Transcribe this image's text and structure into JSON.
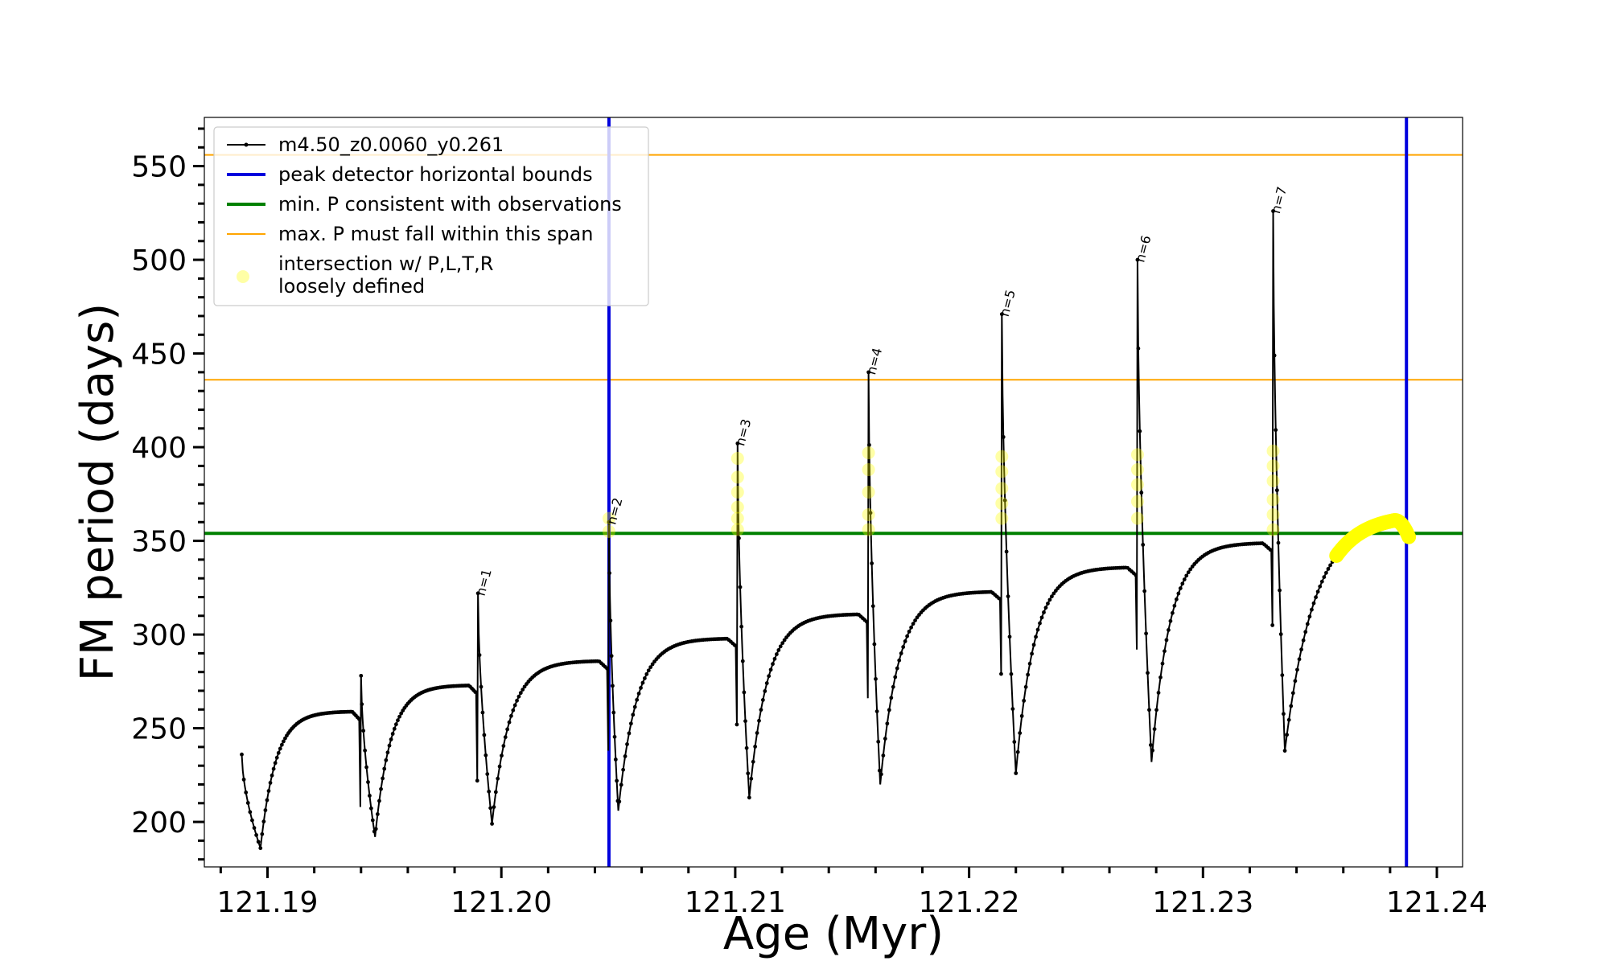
{
  "chart_data": {
    "type": "line",
    "title": "",
    "xlabel": "Age (Myr)",
    "ylabel": "FM period (days)",
    "xlim": [
      121.1873,
      121.2411
    ],
    "ylim": [
      176.0,
      576.0
    ],
    "x_ticks": [
      121.19,
      121.2,
      121.21,
      121.22,
      121.23,
      121.24
    ],
    "x_tick_labels": [
      "121.19",
      "121.20",
      "121.21",
      "121.22",
      "121.23",
      "121.24"
    ],
    "y_ticks": [
      200,
      250,
      300,
      350,
      400,
      450,
      500,
      550
    ],
    "y_tick_labels": [
      "200",
      "250",
      "300",
      "350",
      "400",
      "450",
      "500",
      "550"
    ],
    "legend_position": "top-left",
    "series": [
      {
        "name": "m4.50_z0.0060_y0.261",
        "kind": "line-with-markers",
        "color": "#000000",
        "cycles": [
          {
            "start": 121.1889,
            "start_p": 236,
            "min_x": 121.1897,
            "min_p": 186,
            "plateau_p": 259,
            "peak_x": 121.194,
            "peak_p": 278,
            "drop_p": 208
          },
          {
            "start": 121.194,
            "start_p": 278,
            "min_x": 121.1946,
            "min_p": 192,
            "plateau_p": 273,
            "peak_x": 121.199,
            "peak_p": 322,
            "drop_p": 222
          },
          {
            "start": 121.199,
            "start_p": 322,
            "min_x": 121.1996,
            "min_p": 199,
            "plateau_p": 286,
            "peak_x": 121.2046,
            "peak_p": 360,
            "drop_p": 238
          },
          {
            "start": 121.2046,
            "start_p": 360,
            "min_x": 121.205,
            "min_p": 206,
            "plateau_p": 298,
            "peak_x": 121.2101,
            "peak_p": 402,
            "drop_p": 252
          },
          {
            "start": 121.2101,
            "start_p": 402,
            "min_x": 121.2106,
            "min_p": 213,
            "plateau_p": 311,
            "peak_x": 121.2157,
            "peak_p": 440,
            "drop_p": 266
          },
          {
            "start": 121.2157,
            "start_p": 440,
            "min_x": 121.2162,
            "min_p": 220,
            "plateau_p": 323,
            "peak_x": 121.2214,
            "peak_p": 471,
            "drop_p": 279
          },
          {
            "start": 121.2214,
            "start_p": 471,
            "min_x": 121.222,
            "min_p": 226,
            "plateau_p": 336,
            "peak_x": 121.2272,
            "peak_p": 500,
            "drop_p": 292
          },
          {
            "start": 121.2272,
            "start_p": 500,
            "min_x": 121.2278,
            "min_p": 232,
            "plateau_p": 349,
            "peak_x": 121.233,
            "peak_p": 526,
            "drop_p": 305
          },
          {
            "start": 121.233,
            "start_p": 526,
            "min_x": 121.2335,
            "min_p": 238,
            "plateau_p": 364,
            "peak_x": null,
            "peak_p": null,
            "drop_p": null,
            "end_x": 121.2388,
            "end_p": 354
          }
        ]
      },
      {
        "name": "peak detector horizontal bounds",
        "kind": "vline",
        "color": "#0000dd",
        "x": [
          121.2046,
          121.2387
        ]
      },
      {
        "name": "min. P consistent with observations",
        "kind": "hline",
        "color": "#008000",
        "y": [
          354
        ]
      },
      {
        "name": "max. P must fall within this span",
        "kind": "hline",
        "color": "#ffa500",
        "y": [
          556,
          436
        ]
      },
      {
        "name": "intersection w/ P,L,T,R\nloosely defined",
        "kind": "scatter",
        "color": "#ffff00",
        "clusters": [
          {
            "x": 121.2046,
            "p": [
              355,
              362
            ]
          },
          {
            "x": 121.2101,
            "p": [
              356,
              362,
              368,
              376,
              384,
              394
            ]
          },
          {
            "x": 121.2157,
            "p": [
              356,
              364,
              376,
              388,
              397
            ]
          },
          {
            "x": 121.2214,
            "p": [
              362,
              370,
              378,
              387,
              395
            ]
          },
          {
            "x": 121.2272,
            "p": [
              362,
              371,
              380,
              388,
              396
            ]
          },
          {
            "x": 121.233,
            "p": [
              356,
              364,
              372,
              382,
              390,
              398
            ]
          }
        ],
        "tail": {
          "from_x": 121.2357,
          "to_x": 121.2388
        }
      }
    ],
    "annotations": [
      {
        "text": "n=1",
        "x": 121.199,
        "y": 322
      },
      {
        "text": "n=2",
        "x": 121.2046,
        "y": 360
      },
      {
        "text": "n=3",
        "x": 121.2101,
        "y": 402
      },
      {
        "text": "n=4",
        "x": 121.2157,
        "y": 440
      },
      {
        "text": "n=5",
        "x": 121.2214,
        "y": 471
      },
      {
        "text": "n=6",
        "x": 121.2272,
        "y": 500
      },
      {
        "text": "n=7",
        "x": 121.233,
        "y": 526
      }
    ],
    "legend": {
      "entries": [
        {
          "label": "m4.50_z0.0060_y0.261",
          "style": "line-marker",
          "color": "#000000"
        },
        {
          "label": "peak detector horizontal bounds",
          "style": "line",
          "color": "#0000dd"
        },
        {
          "label": "min. P consistent with observations",
          "style": "line",
          "color": "#008000"
        },
        {
          "label": "max. P must fall within this span",
          "style": "thin-line",
          "color": "#ffa500"
        },
        {
          "label": "intersection w/ P,L,T,R",
          "label2": "loosely defined",
          "style": "dot",
          "color": "#ffff00"
        }
      ]
    }
  }
}
